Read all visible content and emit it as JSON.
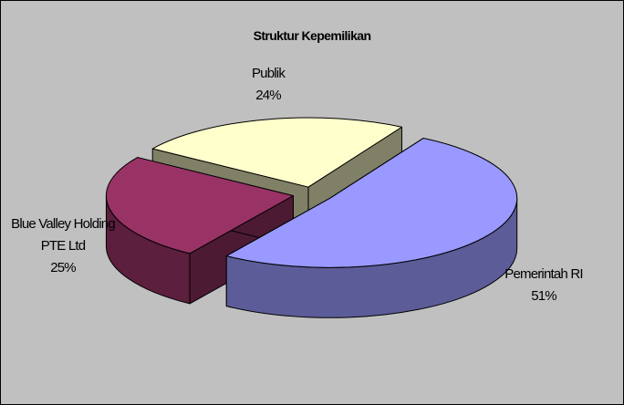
{
  "chart_data": {
    "type": "pie",
    "title": "Struktur Kepemilikan",
    "categories": [
      "Pemerintah RI",
      "Blue Valley Holding PTE Ltd",
      "Publik"
    ],
    "values": [
      51,
      25,
      24
    ],
    "value_labels": [
      "51%",
      "25%",
      "24%"
    ],
    "colors": [
      "#9999ff",
      "#993366",
      "#ffffcc"
    ]
  }
}
